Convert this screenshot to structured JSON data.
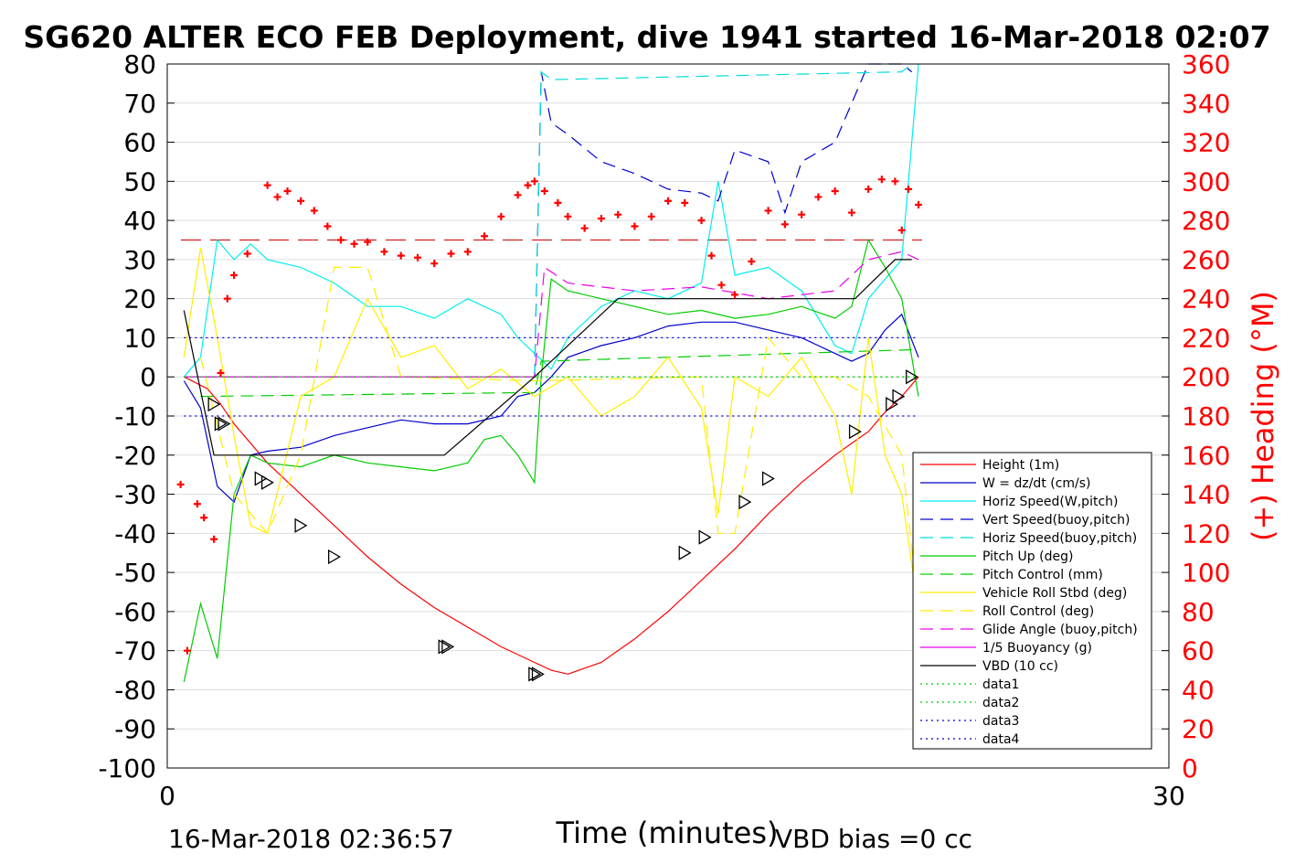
{
  "chart_data": {
    "type": "line",
    "title": "SG620 ALTER ECO FEB Deployment, dive 1941 started 16-Mar-2018 02:07",
    "xlabel": "Time (minutes)",
    "ylabel_right": "(+) Heading (°M)",
    "xlim": [
      0,
      30
    ],
    "ylim": [
      -100,
      80
    ],
    "ylim_right": [
      0,
      360
    ],
    "x_ticks": [
      "0",
      "30"
    ],
    "y_ticks": [
      "80",
      "70",
      "60",
      "50",
      "40",
      "30",
      "20",
      "10",
      "0",
      "-10",
      "-20",
      "-30",
      "-40",
      "-50",
      "-60",
      "-70",
      "-80",
      "-90",
      "-100"
    ],
    "y_ticks_right": [
      "360",
      "340",
      "320",
      "300",
      "280",
      "260",
      "240",
      "220",
      "200",
      "180",
      "160",
      "140",
      "120",
      "100",
      "80",
      "60",
      "40",
      "20",
      "0"
    ],
    "footer_left": "16-Mar-2018 02:36:57",
    "footer_right": "VBD bias =0 cc",
    "grid": true,
    "legend_position": "lower-right",
    "colors": {
      "heading": "#ff0000",
      "axis_right": "#ff0000"
    },
    "series": [
      {
        "name": "Height (1m)",
        "color": "#ff0000",
        "style": "solid",
        "x": [
          0.5,
          1.2,
          1.6,
          2.0,
          3.0,
          4.0,
          5.0,
          6.0,
          7.0,
          8.0,
          9.0,
          10.0,
          11.0,
          11.5,
          12.0,
          13.0,
          14.0,
          15.0,
          16.0,
          17.0,
          18.0,
          19.0,
          20.0,
          20.5,
          21.0,
          21.5,
          22.0,
          22.5
        ],
        "values": [
          0,
          -3,
          -7,
          -12,
          -22,
          -30,
          -38,
          -46,
          -53,
          -59,
          -64,
          -69,
          -73,
          -75,
          -76,
          -73,
          -67,
          -60,
          -52,
          -44,
          -35,
          -27,
          -20,
          -17,
          -14,
          -9,
          -5,
          0
        ]
      },
      {
        "name": "W = dz/dt (cm/s)",
        "color": "#0000cc",
        "style": "solid",
        "x": [
          0.5,
          1.0,
          1.5,
          2.0,
          2.5,
          3.0,
          4.0,
          5.0,
          6.0,
          7.0,
          8.0,
          9.0,
          10.0,
          10.5,
          11.0,
          11.5,
          12.0,
          13.0,
          14.0,
          15.0,
          16.0,
          17.0,
          18.0,
          19.0,
          20.0,
          20.5,
          21.0,
          21.5,
          22.0,
          22.5
        ],
        "values": [
          -1,
          -8,
          -28,
          -32,
          -20,
          -19,
          -18,
          -15,
          -13,
          -11,
          -12,
          -12,
          -10,
          -5,
          -4,
          0,
          5,
          8,
          10,
          13,
          14,
          14,
          12,
          10,
          6,
          4,
          6,
          12,
          16,
          5
        ]
      },
      {
        "name": "Horiz Speed(W,pitch)",
        "color": "#00eeee",
        "style": "solid",
        "x": [
          0.5,
          1.0,
          1.5,
          2.0,
          2.5,
          3.0,
          4.0,
          5.0,
          6.0,
          7.0,
          8.0,
          9.0,
          10.0,
          10.5,
          11.0,
          11.5,
          12.0,
          13.0,
          14.0,
          15.0,
          16.0,
          16.5,
          17.0,
          18.0,
          19.0,
          20.0,
          20.5,
          21.0,
          21.5,
          22.0,
          22.5
        ],
        "values": [
          0,
          5,
          35,
          30,
          34,
          30,
          28,
          24,
          18,
          18,
          15,
          20,
          16,
          10,
          6,
          2,
          10,
          18,
          22,
          20,
          24,
          50,
          26,
          28,
          22,
          8,
          6,
          20,
          25,
          30,
          80
        ]
      },
      {
        "name": "Vert Speed(buoy,pitch)",
        "color": "#0000cc",
        "style": "dashed",
        "x": [
          11.0,
          11.2,
          11.5,
          12.0,
          13.0,
          14.0,
          15.0,
          16.0,
          16.5,
          17.0,
          18.0,
          18.5,
          19.0,
          20.0,
          21.0,
          21.5,
          22.0,
          22.3
        ],
        "values": [
          0,
          78,
          65,
          62,
          55,
          52,
          48,
          47,
          45,
          58,
          55,
          42,
          55,
          60,
          80,
          82,
          80,
          78
        ]
      },
      {
        "name": "Horiz Speed(buoy,pitch)",
        "color": "#00dddd",
        "style": "dashed",
        "x": [
          11.0,
          11.2,
          11.5,
          22.0,
          22.3
        ],
        "values": [
          0,
          78,
          76,
          78,
          80
        ]
      },
      {
        "name": "Pitch Up (deg)",
        "color": "#00cc00",
        "style": "solid",
        "x": [
          0.5,
          1.0,
          1.5,
          2.0,
          2.5,
          3.0,
          4.0,
          5.0,
          6.0,
          7.0,
          8.0,
          9.0,
          9.5,
          10.0,
          10.5,
          11.0,
          11.2,
          11.5,
          12.0,
          13.0,
          14.0,
          15.0,
          16.0,
          17.0,
          18.0,
          19.0,
          20.0,
          20.5,
          21.0,
          21.5,
          22.0,
          22.5
        ],
        "values": [
          -78,
          -58,
          -72,
          -30,
          -20,
          -22,
          -23,
          -20,
          -22,
          -23,
          -24,
          -22,
          -16,
          -15,
          -20,
          -27,
          0,
          25,
          22,
          20,
          18,
          16,
          17,
          15,
          16,
          18,
          15,
          18,
          35,
          28,
          20,
          -5
        ]
      },
      {
        "name": "Pitch Control (mm)",
        "color": "#00cc00",
        "style": "dashed",
        "x": [
          1.0,
          11.0,
          11.2,
          22.5
        ],
        "values": [
          -5,
          -4,
          4,
          7
        ]
      },
      {
        "name": "Vehicle Roll Stbd (deg)",
        "color": "#ffee00",
        "style": "solid",
        "x": [
          0.5,
          1.0,
          1.5,
          2.0,
          2.5,
          3.0,
          4.0,
          5.0,
          6.0,
          7.0,
          8.0,
          9.0,
          10.0,
          11.0,
          12.0,
          13.0,
          14.0,
          15.0,
          16.0,
          16.5,
          17.0,
          18.0,
          19.0,
          20.0,
          20.5,
          21.0,
          21.5,
          22.0,
          22.5
        ],
        "values": [
          5,
          33,
          10,
          -15,
          -38,
          -40,
          -5,
          0,
          20,
          5,
          8,
          -3,
          2,
          -5,
          0,
          -10,
          -5,
          5,
          -8,
          -35,
          0,
          -5,
          5,
          -10,
          -30,
          10,
          -20,
          -30,
          -60
        ]
      },
      {
        "name": "Roll Control (deg)",
        "color": "#ffee00",
        "style": "dashed",
        "x": [
          1.0,
          2.0,
          3.0,
          4.0,
          5.0,
          6.0,
          7.0,
          11.0,
          16.0,
          16.5,
          17.0,
          18.0,
          19.0,
          20.0,
          21.0,
          22.0,
          22.5
        ],
        "values": [
          5,
          -30,
          -40,
          -20,
          28,
          28,
          0,
          -1,
          0,
          -40,
          -40,
          10,
          0,
          0,
          -5,
          -20,
          -60
        ]
      },
      {
        "name": "Glide Angle (buoy,pitch)",
        "color": "#ee00ee",
        "style": "dashed",
        "x": [
          0.5,
          11.0,
          11.3,
          12.0,
          14.0,
          16.0,
          18.0,
          20.0,
          21.0,
          22.0,
          22.5
        ],
        "values": [
          0,
          0,
          28,
          24,
          22,
          23,
          20,
          22,
          30,
          32,
          30
        ]
      },
      {
        "name": "1/5 Buoyancy (g)",
        "color": "#ee00ee",
        "style": "solid",
        "x": [
          0.5,
          11.0
        ],
        "values": [
          0,
          0
        ]
      },
      {
        "name": "VBD (10 cc)",
        "color": "#000000",
        "style": "solid",
        "x": [
          0.5,
          1.4,
          8.3,
          11.0,
          13.5,
          20.6,
          21.8,
          22.3
        ],
        "values": [
          17,
          -20,
          -20,
          0,
          20,
          20,
          30,
          30
        ]
      },
      {
        "name": "data1",
        "color": "#00cc00",
        "style": "dotted",
        "x": [
          0.5,
          22.5
        ],
        "values": [
          0,
          0
        ]
      },
      {
        "name": "data2",
        "color": "#00cc00",
        "style": "dotted",
        "x": [
          0.5,
          22.5
        ],
        "values": [
          0,
          0
        ]
      },
      {
        "name": "data3",
        "color": "#0000cc",
        "style": "dotted",
        "x": [
          0.5,
          22.5
        ],
        "values": [
          10,
          10
        ]
      },
      {
        "name": "data4",
        "color": "#0000cc",
        "style": "dotted",
        "x": [
          0.5,
          22.5
        ],
        "values": [
          -10,
          -10
        ]
      }
    ],
    "heading_points": {
      "axis": "right",
      "marker": "+",
      "color": "#ff0000",
      "x": [
        0.4,
        0.6,
        0.9,
        1.1,
        1.4,
        1.6,
        1.8,
        2.0,
        2.4,
        3.0,
        3.3,
        3.6,
        4.0,
        4.4,
        4.8,
        5.2,
        5.6,
        6.0,
        6.5,
        7.0,
        7.5,
        8.0,
        8.5,
        9.0,
        9.5,
        10.0,
        10.5,
        10.8,
        11.0,
        11.3,
        11.7,
        12.0,
        12.5,
        13.0,
        13.5,
        14.0,
        14.5,
        15.0,
        15.5,
        16.0,
        16.3,
        16.6,
        17.0,
        17.5,
        18.0,
        18.5,
        19.0,
        19.5,
        20.0,
        20.5,
        21.0,
        21.4,
        21.8,
        22.0,
        22.2,
        22.5
      ],
      "values": [
        145,
        60,
        135,
        128,
        117,
        202,
        240,
        252,
        263,
        298,
        292,
        295,
        290,
        285,
        277,
        270,
        268,
        269,
        264,
        262,
        261,
        258,
        263,
        264,
        272,
        282,
        293,
        298,
        300,
        295,
        289,
        282,
        276,
        281,
        283,
        277,
        282,
        290,
        289,
        280,
        262,
        247,
        242,
        259,
        285,
        278,
        283,
        292,
        295,
        284,
        296,
        301,
        300,
        275,
        296,
        288
      ]
    },
    "reference_lines": [
      {
        "axis": "right",
        "value": 270,
        "color": "#cc0000",
        "style": "dashed"
      }
    ],
    "triangle_points": {
      "x": [
        1.4,
        1.6,
        1.7,
        2.8,
        3.0,
        4.0,
        5.0,
        8.3,
        8.4,
        11.0,
        11.1,
        15.5,
        16.1,
        17.3,
        18.0,
        20.6,
        21.7,
        21.9,
        22.3
      ],
      "values": [
        -7,
        -12,
        -12,
        -26,
        -27,
        -38,
        -46,
        -69,
        -69,
        -76,
        -76,
        -45,
        -41,
        -32,
        -26,
        -14,
        -7,
        -5,
        0
      ]
    }
  }
}
